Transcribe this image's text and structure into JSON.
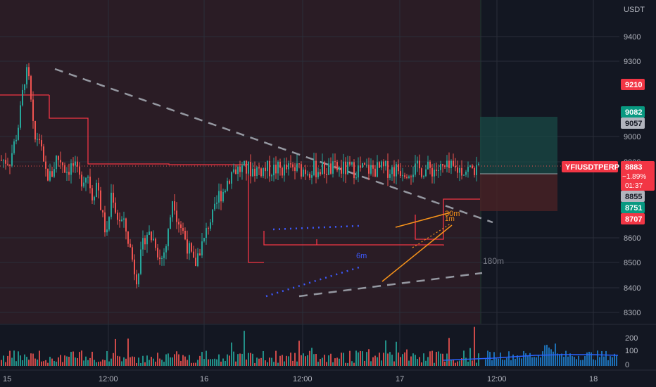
{
  "price_axis": {
    "currency": "USDT",
    "ticks": [
      9400,
      9300,
      9000,
      8900,
      8600,
      8500,
      8400,
      8300
    ]
  },
  "time_axis": {
    "labels": [
      "15",
      "12:00",
      "16",
      "12:00",
      "17",
      "12:00",
      "18"
    ]
  },
  "volume_axis": {
    "ticks": [
      "200",
      "100",
      "0"
    ]
  },
  "symbol": "YFIUSDTPERP",
  "price_tags": {
    "level_9210": "9210",
    "target": "9082",
    "high": "9057",
    "last": "8883",
    "change": "−1.89%",
    "countdown": "01:37",
    "level_8855": "8855",
    "level_8751": "8751",
    "stop": "8707"
  },
  "annotations": {
    "label_180m": "180m",
    "label_30m": "30m",
    "label_6m": "6m",
    "label_1m": "1m"
  },
  "colors": {
    "background": "#131722",
    "up": "#26a69a",
    "down": "#ef5350",
    "shade": "#3a1e25",
    "trendline": "#9598a1",
    "orange": "#f7931a",
    "blue_dotted": "#3d5afe"
  },
  "chart_data": {
    "type": "candlestick",
    "symbol": "YFIUSDTPERP",
    "price_range": [
      8250,
      9520
    ],
    "price_ticks": [
      8300,
      8400,
      8500,
      8600,
      8900,
      9000,
      9300,
      9400
    ],
    "close_path": [
      [
        0,
        8920
      ],
      [
        0.05,
        8990
      ],
      [
        0.1,
        9080
      ],
      [
        0.16,
        9270
      ],
      [
        0.2,
        9220
      ],
      [
        0.25,
        8990
      ],
      [
        0.3,
        9020
      ],
      [
        0.35,
        8880
      ],
      [
        0.42,
        8850
      ],
      [
        0.48,
        8930
      ],
      [
        0.53,
        8920
      ],
      [
        0.58,
        8880
      ],
      [
        0.65,
        8900
      ],
      [
        0.72,
        8840
      ],
      [
        0.8,
        8870
      ],
      [
        0.85,
        8780
      ],
      [
        0.9,
        8840
      ],
      [
        0.95,
        8700
      ],
      [
        1.0,
        8620
      ],
      [
        1.05,
        8810
      ],
      [
        1.1,
        8700
      ],
      [
        1.15,
        8680
      ],
      [
        1.2,
        8640
      ],
      [
        1.25,
        8550
      ],
      [
        1.3,
        8460
      ],
      [
        1.35,
        8540
      ],
      [
        1.4,
        8640
      ],
      [
        1.45,
        8620
      ],
      [
        1.5,
        8600
      ],
      [
        1.55,
        8520
      ],
      [
        1.62,
        8600
      ],
      [
        1.68,
        8790
      ],
      [
        1.72,
        8700
      ],
      [
        1.78,
        8640
      ],
      [
        1.85,
        8560
      ],
      [
        1.9,
        8500
      ],
      [
        1.95,
        8570
      ],
      [
        2.0,
        8600
      ],
      [
        2.05,
        8680
      ],
      [
        2.1,
        8700
      ],
      [
        2.15,
        8780
      ],
      [
        2.2,
        8800
      ],
      [
        2.25,
        8850
      ],
      [
        2.3,
        8883
      ]
    ],
    "volume": "colored histogram bars under the price pane, scale 0-200",
    "levels": [
      9210,
      9082,
      9057,
      8883,
      8855,
      8751,
      8707
    ]
  }
}
